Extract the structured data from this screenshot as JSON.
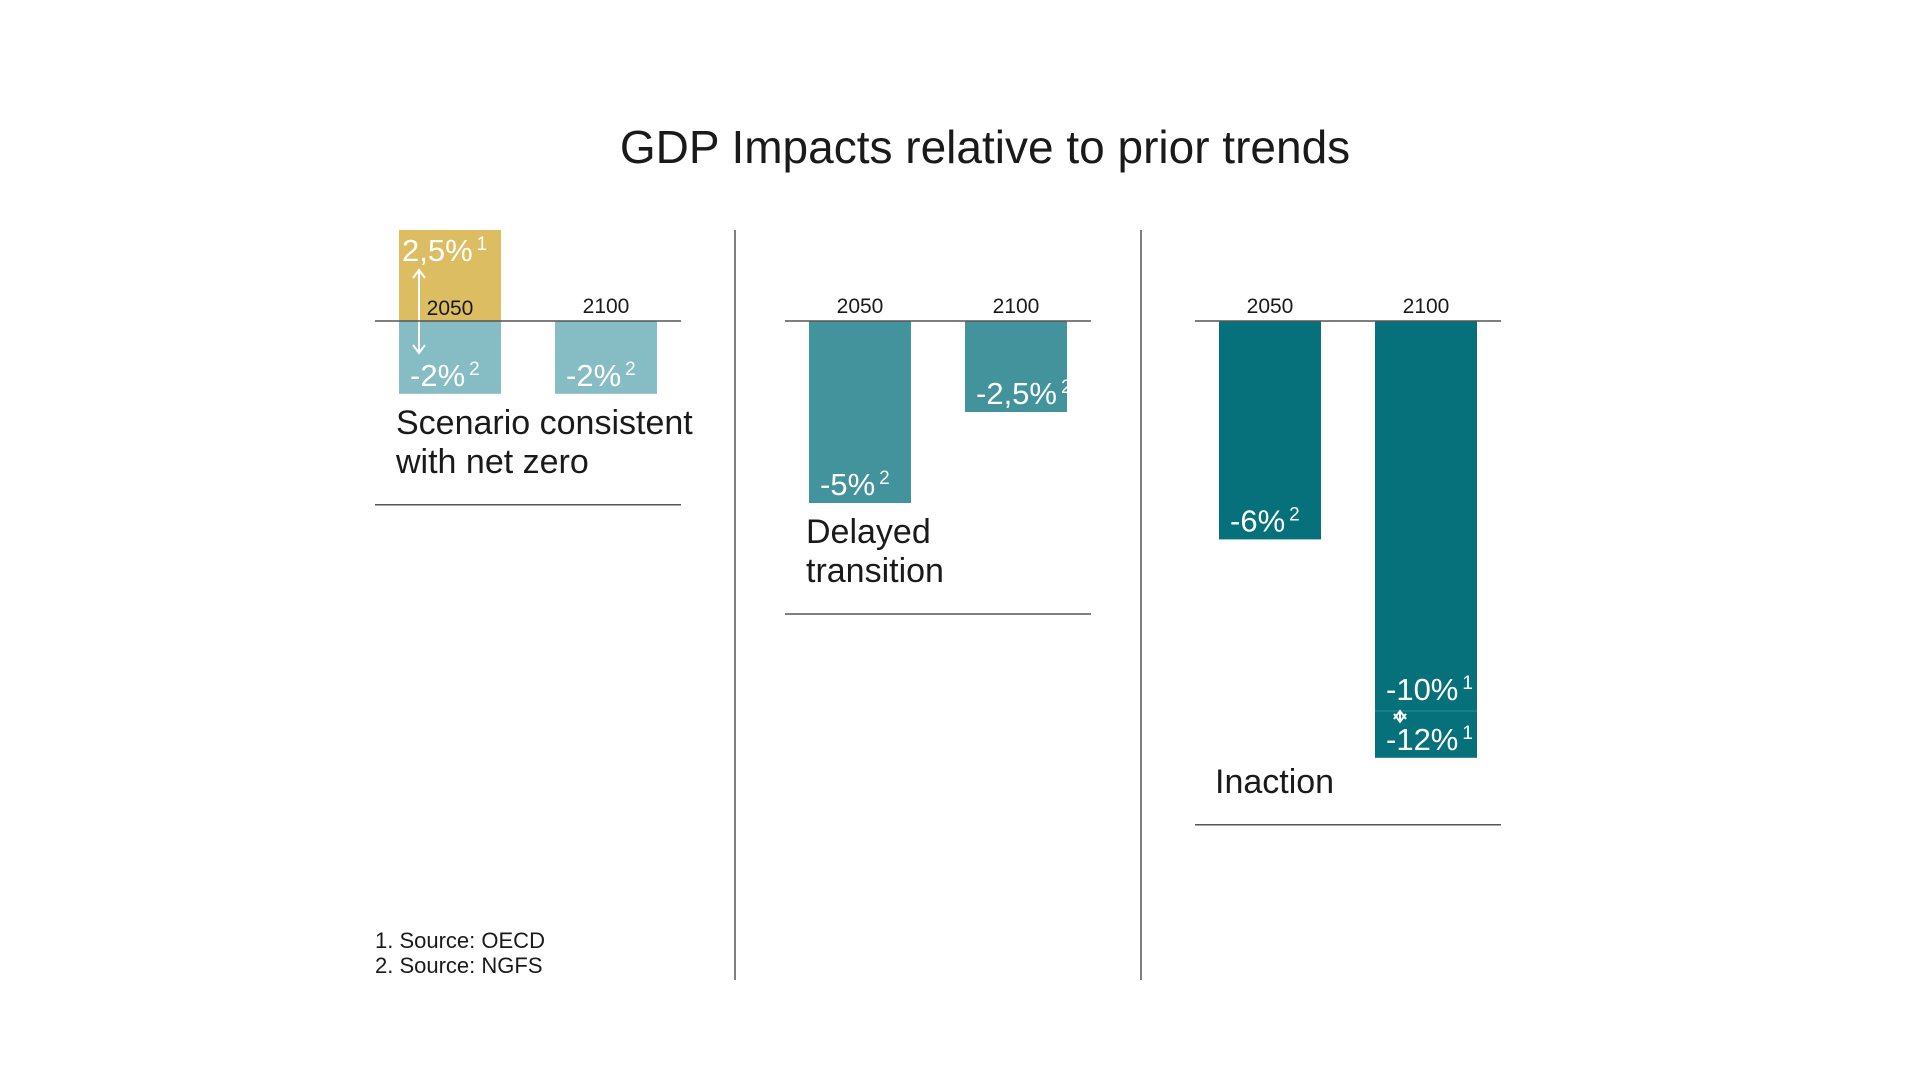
{
  "chart_data": {
    "type": "bar",
    "title": "GDP Impacts relative to prior trends",
    "unit": "%",
    "ylim": [
      -12,
      2.5
    ],
    "categories": [
      "2050",
      "2100"
    ],
    "groups": [
      {
        "label_lines": [
          "Scenario consistent",
          "with net zero"
        ],
        "bars": [
          {
            "year": "2050",
            "value": -2,
            "label": "-2%",
            "note": "2",
            "range_top": 2.5,
            "range_top_label": "2,5%",
            "range_top_note": "1",
            "color": "#86bcc3",
            "range_color": "#dcbd62"
          },
          {
            "year": "2100",
            "value": -2,
            "label": "-2%",
            "note": "2",
            "color": "#86bcc3"
          }
        ]
      },
      {
        "label_lines": [
          "Delayed",
          "transition"
        ],
        "bars": [
          {
            "year": "2050",
            "value": -5,
            "label": "-5%",
            "note": "2",
            "color": "#43939d"
          },
          {
            "year": "2100",
            "value": -2.5,
            "label": "-2,5%",
            "note": "2",
            "color": "#43939d"
          }
        ]
      },
      {
        "label_lines": [
          "Inaction"
        ],
        "bars": [
          {
            "year": "2050",
            "value": -6,
            "label": "-6%",
            "note": "2",
            "color": "#07717b"
          },
          {
            "year": "2100",
            "value": -12,
            "label": "-12%",
            "note": "1",
            "range_top": -10,
            "range_top_label": "-10%",
            "range_top_note": "1",
            "color": "#07717b"
          }
        ]
      }
    ]
  },
  "footnotes": [
    "1. Source: OECD",
    "2. Source: NGFS"
  ]
}
